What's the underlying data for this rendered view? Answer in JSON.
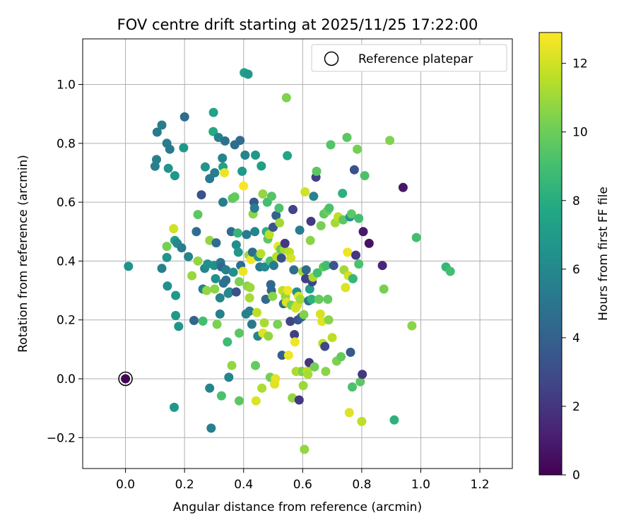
{
  "chart_data": {
    "type": "scatter",
    "title": "FOV centre drift starting at 2025/11/25 17:22:00",
    "xlabel": "Angular distance from reference (arcmin)",
    "ylabel": "Rotation from reference (arcmin)",
    "xlim": [
      -0.145,
      1.31
    ],
    "ylim": [
      -0.305,
      1.155
    ],
    "x_ticks": [
      0.0,
      0.2,
      0.4,
      0.6,
      0.8,
      1.0,
      1.2
    ],
    "x_tick_labels": [
      "0.0",
      "0.2",
      "0.4",
      "0.6",
      "0.8",
      "1.0",
      "1.2"
    ],
    "y_ticks": [
      -0.2,
      0.0,
      0.2,
      0.4,
      0.6,
      0.8,
      1.0
    ],
    "y_tick_labels": [
      "−0.2",
      "0.0",
      "0.2",
      "0.4",
      "0.6",
      "0.8",
      "1.0"
    ],
    "grid": true,
    "legend": {
      "position": "top-right",
      "label": "Reference platepar"
    },
    "reference_point": {
      "x": 0.0,
      "y": 0.0
    },
    "colorbar": {
      "label": "Hours from first FF file",
      "range": [
        0,
        12.9
      ],
      "ticks": [
        0,
        2,
        4,
        6,
        8,
        10,
        12
      ],
      "tick_labels": [
        "0",
        "2",
        "4",
        "6",
        "8",
        "10",
        "12"
      ],
      "colormap": "viridis"
    },
    "points": [
      [
        0.0,
        0.0,
        0.1
      ],
      [
        0.01,
        0.382,
        6.5
      ],
      [
        0.1,
        0.722,
        5.5
      ],
      [
        0.105,
        0.745,
        5.6
      ],
      [
        0.107,
        0.838,
        5.2
      ],
      [
        0.123,
        0.862,
        5.3
      ],
      [
        0.14,
        0.8,
        5.4
      ],
      [
        0.15,
        0.78,
        5.2
      ],
      [
        0.145,
        0.715,
        6.6
      ],
      [
        0.167,
        0.69,
        6.8
      ],
      [
        0.2,
        0.89,
        4.6
      ],
      [
        0.197,
        0.785,
        6.8
      ],
      [
        0.167,
        0.47,
        7.2
      ],
      [
        0.175,
        0.46,
        6.0
      ],
      [
        0.19,
        0.445,
        5.4
      ],
      [
        0.123,
        0.375,
        5.5
      ],
      [
        0.14,
        0.412,
        6.6
      ],
      [
        0.14,
        0.45,
        10.2
      ],
      [
        0.142,
        0.315,
        6.4
      ],
      [
        0.163,
        0.51,
        12.0
      ],
      [
        0.17,
        0.283,
        6.9
      ],
      [
        0.17,
        0.215,
        6.9
      ],
      [
        0.18,
        0.178,
        6.6
      ],
      [
        0.165,
        -0.097,
        6.8
      ],
      [
        0.213,
        0.415,
        5.8
      ],
      [
        0.225,
        0.35,
        10.9
      ],
      [
        0.232,
        0.198,
        4.2
      ],
      [
        0.24,
        0.5,
        4.6
      ],
      [
        0.245,
        0.4,
        10.8
      ],
      [
        0.245,
        0.558,
        9.6
      ],
      [
        0.257,
        0.625,
        3.2
      ],
      [
        0.262,
        0.196,
        9.0
      ],
      [
        0.262,
        0.305,
        5.5
      ],
      [
        0.268,
        0.375,
        5.8
      ],
      [
        0.27,
        0.72,
        6.8
      ],
      [
        0.275,
        0.3,
        10.8
      ],
      [
        0.278,
        0.39,
        6.4
      ],
      [
        0.285,
        0.68,
        5.2
      ],
      [
        0.285,
        0.47,
        10.8
      ],
      [
        0.285,
        -0.032,
        5.8
      ],
      [
        0.29,
        -0.168,
        5.5
      ],
      [
        0.297,
        0.84,
        7.8
      ],
      [
        0.298,
        0.905,
        7.4
      ],
      [
        0.302,
        0.7,
        5.4
      ],
      [
        0.3,
        0.385,
        6.4
      ],
      [
        0.302,
        0.305,
        10.6
      ],
      [
        0.305,
        0.34,
        6.4
      ],
      [
        0.307,
        0.462,
        4.6
      ],
      [
        0.31,
        0.185,
        10.3
      ],
      [
        0.315,
        0.82,
        5.6
      ],
      [
        0.32,
        0.275,
        5.8
      ],
      [
        0.32,
        0.22,
        5.5
      ],
      [
        0.322,
        0.395,
        5.2
      ],
      [
        0.325,
        0.38,
        4.4
      ],
      [
        0.325,
        -0.058,
        9.2
      ],
      [
        0.328,
        0.75,
        5.8
      ],
      [
        0.33,
        0.72,
        7.4
      ],
      [
        0.33,
        0.6,
        5.4
      ],
      [
        0.332,
        0.325,
        4.8
      ],
      [
        0.335,
        0.7,
        12.5
      ],
      [
        0.337,
        0.808,
        4.8
      ],
      [
        0.34,
        0.37,
        5.5
      ],
      [
        0.34,
        0.335,
        4.8
      ],
      [
        0.345,
        0.125,
        8.8
      ],
      [
        0.348,
        0.29,
        5.8
      ],
      [
        0.35,
        0.005,
        5.8
      ],
      [
        0.352,
        0.295,
        6.1
      ],
      [
        0.358,
        0.5,
        4.6
      ],
      [
        0.36,
        0.045,
        10.8
      ],
      [
        0.362,
        0.613,
        9.6
      ],
      [
        0.365,
        0.362,
        6.4
      ],
      [
        0.37,
        0.618,
        9.8
      ],
      [
        0.37,
        0.795,
        4.6
      ],
      [
        0.375,
        0.455,
        6.4
      ],
      [
        0.375,
        0.295,
        3.2
      ],
      [
        0.38,
        0.495,
        8.5
      ],
      [
        0.382,
        0.43,
        6.8
      ],
      [
        0.385,
        0.155,
        9.6
      ],
      [
        0.385,
        -0.075,
        9.6
      ],
      [
        0.385,
        0.33,
        10.3
      ],
      [
        0.388,
        0.81,
        4.6
      ],
      [
        0.39,
        0.385,
        4.6
      ],
      [
        0.395,
        0.705,
        6.9
      ],
      [
        0.398,
        0.365,
        12.5
      ],
      [
        0.4,
        0.655,
        12.8
      ],
      [
        0.402,
        1.04,
        7.3
      ],
      [
        0.405,
        0.76,
        5.8
      ],
      [
        0.408,
        0.22,
        5.6
      ],
      [
        0.41,
        0.49,
        5.3
      ],
      [
        0.412,
        0.315,
        10.6
      ],
      [
        0.415,
        1.035,
        6.8
      ],
      [
        0.418,
        0.42,
        11.0
      ],
      [
        0.42,
        0.23,
        5.4
      ],
      [
        0.42,
        0.275,
        11.2
      ],
      [
        0.422,
        0.31,
        11.0
      ],
      [
        0.425,
        0.405,
        12.6
      ],
      [
        0.428,
        0.185,
        5.2
      ],
      [
        0.43,
        0.43,
        4.6
      ],
      [
        0.432,
        0.56,
        10.6
      ],
      [
        0.435,
        0.6,
        3.6
      ],
      [
        0.437,
        0.58,
        5.4
      ],
      [
        0.438,
        0.5,
        5.8
      ],
      [
        0.44,
        0.76,
        6.8
      ],
      [
        0.44,
        0.045,
        9.8
      ],
      [
        0.442,
        -0.075,
        12.2
      ],
      [
        0.445,
        0.225,
        11.6
      ],
      [
        0.448,
        0.145,
        5.8
      ],
      [
        0.45,
        0.415,
        6.6
      ],
      [
        0.455,
        0.38,
        5.2
      ],
      [
        0.458,
        0.425,
        11.5
      ],
      [
        0.46,
        0.723,
        7.2
      ],
      [
        0.462,
        -0.032,
        11.3
      ],
      [
        0.465,
        0.155,
        12.3
      ],
      [
        0.465,
        0.628,
        10.8
      ],
      [
        0.47,
        0.19,
        11.2
      ],
      [
        0.472,
        0.38,
        6.1
      ],
      [
        0.475,
        0.27,
        4.4
      ],
      [
        0.477,
        0.5,
        8.2
      ],
      [
        0.48,
        0.6,
        9.0
      ],
      [
        0.482,
        0.475,
        9.6
      ],
      [
        0.484,
        0.145,
        10.8
      ],
      [
        0.487,
        0.49,
        11.6
      ],
      [
        0.49,
        0.005,
        10.2
      ],
      [
        0.49,
        0.4,
        9.2
      ],
      [
        0.492,
        0.32,
        4.4
      ],
      [
        0.494,
        0.3,
        4.3
      ],
      [
        0.495,
        0.62,
        9.4
      ],
      [
        0.498,
        0.28,
        10.6
      ],
      [
        0.5,
        0.515,
        3.4
      ],
      [
        0.502,
        0.385,
        5.2
      ],
      [
        0.505,
        -0.018,
        12.3
      ],
      [
        0.508,
        0.0,
        12.4
      ],
      [
        0.51,
        0.555,
        4.1
      ],
      [
        0.512,
        0.415,
        11.6
      ],
      [
        0.515,
        0.185,
        10.3
      ],
      [
        0.517,
        0.45,
        12.5
      ],
      [
        0.52,
        0.58,
        9.2
      ],
      [
        0.522,
        0.53,
        11.1
      ],
      [
        0.525,
        0.44,
        9.8
      ],
      [
        0.528,
        0.41,
        3.2
      ],
      [
        0.53,
        0.08,
        3.8
      ],
      [
        0.532,
        0.3,
        11.6
      ],
      [
        0.535,
        0.255,
        4.6
      ],
      [
        0.538,
        0.44,
        11.2
      ],
      [
        0.54,
        0.46,
        2.1
      ],
      [
        0.542,
        0.28,
        10.8
      ],
      [
        0.545,
        0.955,
        10.4
      ],
      [
        0.545,
        0.26,
        12.2
      ],
      [
        0.548,
        0.758,
        7.6
      ],
      [
        0.55,
        0.3,
        12.6
      ],
      [
        0.552,
        0.08,
        12.6
      ],
      [
        0.555,
        0.43,
        11.6
      ],
      [
        0.558,
        0.195,
        2.6
      ],
      [
        0.56,
        0.41,
        12.1
      ],
      [
        0.562,
        0.25,
        10.2
      ],
      [
        0.565,
        -0.065,
        10.8
      ],
      [
        0.567,
        0.575,
        2.6
      ],
      [
        0.57,
        0.37,
        4.6
      ],
      [
        0.572,
        0.15,
        2.4
      ],
      [
        0.574,
        0.125,
        12.6
      ],
      [
        0.576,
        0.24,
        12.1
      ],
      [
        0.578,
        0.025,
        11.2
      ],
      [
        0.58,
        0.295,
        6.4
      ],
      [
        0.582,
        0.25,
        12.0
      ],
      [
        0.584,
        0.2,
        3.4
      ],
      [
        0.586,
        0.28,
        12.2
      ],
      [
        0.588,
        -0.072,
        2.1
      ],
      [
        0.59,
        0.505,
        5.4
      ],
      [
        0.592,
        0.27,
        11.1
      ],
      [
        0.594,
        0.025,
        11.8
      ],
      [
        0.596,
        0.21,
        3.8
      ],
      [
        0.598,
        0.025,
        10.4
      ],
      [
        0.6,
        0.365,
        11.2
      ],
      [
        0.602,
        -0.023,
        11.0
      ],
      [
        0.604,
        0.218,
        10.4
      ],
      [
        0.606,
        -0.24,
        10.8
      ],
      [
        0.608,
        0.635,
        12.0
      ],
      [
        0.61,
        0.34,
        2.4
      ],
      [
        0.612,
        0.37,
        4.4
      ],
      [
        0.615,
        0.025,
        11.6
      ],
      [
        0.618,
        0.015,
        11.2
      ],
      [
        0.62,
        0.265,
        4.9
      ],
      [
        0.622,
        0.055,
        2.0
      ],
      [
        0.624,
        0.305,
        7.1
      ],
      [
        0.626,
        0.47,
        10.6
      ],
      [
        0.628,
        0.535,
        2.1
      ],
      [
        0.63,
        0.27,
        8.2
      ],
      [
        0.632,
        0.33,
        2.6
      ],
      [
        0.635,
        0.345,
        11.2
      ],
      [
        0.637,
        0.62,
        5.8
      ],
      [
        0.64,
        0.04,
        10.2
      ],
      [
        0.645,
        0.685,
        2.4
      ],
      [
        0.647,
        0.705,
        9.6
      ],
      [
        0.65,
        0.36,
        9.0
      ],
      [
        0.655,
        0.27,
        9.8
      ],
      [
        0.66,
        0.22,
        12.1
      ],
      [
        0.662,
        0.52,
        10.2
      ],
      [
        0.665,
        0.195,
        12.3
      ],
      [
        0.668,
        0.12,
        11.6
      ],
      [
        0.67,
        0.38,
        9.6
      ],
      [
        0.672,
        0.56,
        9.6
      ],
      [
        0.675,
        0.11,
        2.8
      ],
      [
        0.678,
        0.025,
        10.6
      ],
      [
        0.68,
        0.385,
        8.9
      ],
      [
        0.683,
        0.57,
        10.0
      ],
      [
        0.685,
        0.27,
        9.8
      ],
      [
        0.688,
        0.2,
        10.6
      ],
      [
        0.69,
        0.58,
        9.2
      ],
      [
        0.695,
        0.795,
        9.4
      ],
      [
        0.7,
        0.14,
        11.6
      ],
      [
        0.705,
        0.385,
        3.4
      ],
      [
        0.71,
        0.53,
        11.1
      ],
      [
        0.715,
        0.06,
        10.4
      ],
      [
        0.72,
        0.55,
        11.6
      ],
      [
        0.73,
        0.075,
        9.8
      ],
      [
        0.735,
        0.63,
        8.2
      ],
      [
        0.737,
        0.54,
        9.6
      ],
      [
        0.74,
        0.37,
        11.1
      ],
      [
        0.745,
        0.31,
        12.2
      ],
      [
        0.75,
        0.82,
        9.6
      ],
      [
        0.752,
        0.43,
        12.6
      ],
      [
        0.755,
        0.35,
        12.0
      ],
      [
        0.758,
        -0.115,
        12.3
      ],
      [
        0.76,
        0.55,
        6.6
      ],
      [
        0.762,
        0.09,
        3.6
      ],
      [
        0.765,
        0.56,
        9.6
      ],
      [
        0.768,
        -0.028,
        9.2
      ],
      [
        0.77,
        0.34,
        8.5
      ],
      [
        0.775,
        0.71,
        3.2
      ],
      [
        0.78,
        0.42,
        2.1
      ],
      [
        0.785,
        0.78,
        10.2
      ],
      [
        0.79,
        0.545,
        9.0
      ],
      [
        0.79,
        0.39,
        9.2
      ],
      [
        0.795,
        -0.01,
        9.6
      ],
      [
        0.8,
        -0.145,
        11.6
      ],
      [
        0.802,
        0.015,
        2.1
      ],
      [
        0.805,
        0.5,
        0.9
      ],
      [
        0.81,
        0.69,
        9.2
      ],
      [
        0.825,
        0.46,
        0.6
      ],
      [
        0.87,
        0.385,
        1.4
      ],
      [
        0.875,
        0.305,
        10.2
      ],
      [
        0.895,
        0.81,
        10.4
      ],
      [
        0.91,
        -0.14,
        8.2
      ],
      [
        0.94,
        0.65,
        0.8
      ],
      [
        0.97,
        0.18,
        10.6
      ],
      [
        0.985,
        0.48,
        9.0
      ],
      [
        1.085,
        0.38,
        8.5
      ],
      [
        1.1,
        0.365,
        9.0
      ]
    ]
  }
}
